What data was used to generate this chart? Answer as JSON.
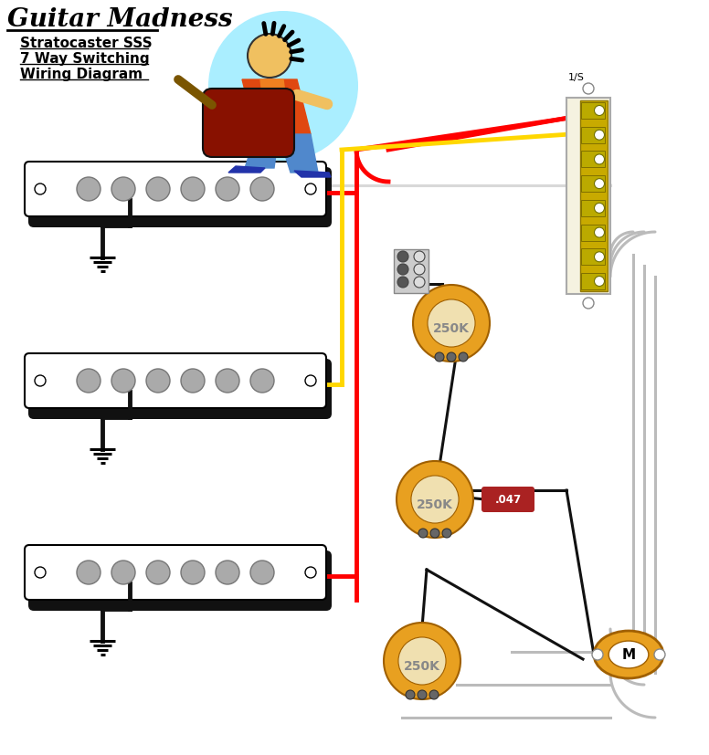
{
  "title": "Guitar Madness",
  "subtitle_line1": "Stratocaster SSS",
  "subtitle_line2": "7 Way Switching",
  "subtitle_line3": "Wiring Diagram",
  "bg_color": "#ffffff",
  "wire_red": "#ff0000",
  "wire_yellow": "#ffd700",
  "wire_black": "#111111",
  "wire_gray": "#bbbbbb",
  "pickup_fill": "#ffffff",
  "pole_fill": "#aaaaaa",
  "pot_outer": "#e8a020",
  "pot_inner": "#f0d070",
  "pot_text": "250K",
  "pot_text_color": "#888888",
  "cap_fill": "#aa2222",
  "cap_text": ".047",
  "output_text": "M",
  "switch_label": "1/S",
  "switch_body": "#f5f2e0",
  "switch_gold": "#c8aa00",
  "switch_term": "#bbaa00"
}
